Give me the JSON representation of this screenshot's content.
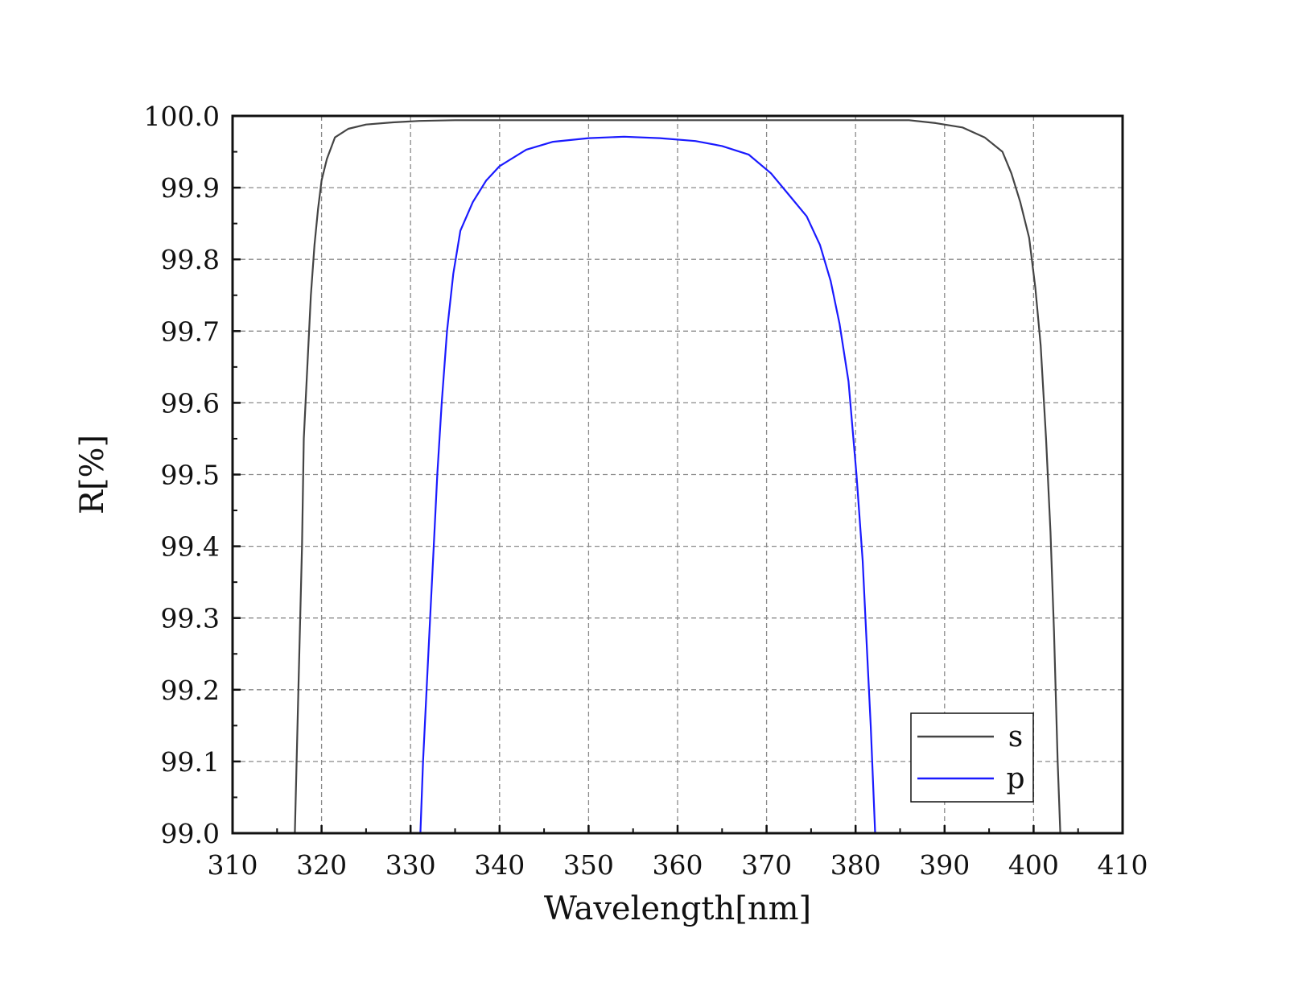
{
  "chart_data": {
    "type": "line",
    "title": "",
    "xlabel": "Wavelength[nm]",
    "ylabel": "R[%]",
    "xlim": [
      310,
      410
    ],
    "ylim": [
      99.0,
      100.0
    ],
    "x_ticks": [
      "310",
      "320",
      "330",
      "340",
      "350",
      "360",
      "370",
      "380",
      "390",
      "400",
      "410"
    ],
    "y_ticks": [
      "99.0",
      "99.1",
      "99.2",
      "99.3",
      "99.4",
      "99.5",
      "99.6",
      "99.7",
      "99.8",
      "99.9",
      "100.0"
    ],
    "grid": true,
    "legend_position": "bottom-right",
    "series": [
      {
        "name": "s",
        "color": "#444444",
        "points": [
          [
            317.0,
            99.0
          ],
          [
            317.4,
            99.2
          ],
          [
            317.8,
            99.4
          ],
          [
            318.0,
            99.55
          ],
          [
            318.4,
            99.65
          ],
          [
            318.8,
            99.75
          ],
          [
            319.2,
            99.82
          ],
          [
            319.6,
            99.87
          ],
          [
            320.0,
            99.91
          ],
          [
            320.6,
            99.94
          ],
          [
            321.5,
            99.97
          ],
          [
            323.0,
            99.982
          ],
          [
            325.0,
            99.988
          ],
          [
            328.0,
            99.991
          ],
          [
            331.0,
            99.993
          ],
          [
            335.0,
            99.994
          ],
          [
            345.0,
            99.994
          ],
          [
            355.0,
            99.994
          ],
          [
            365.0,
            99.994
          ],
          [
            375.0,
            99.994
          ],
          [
            386.0,
            99.994
          ],
          [
            389.0,
            99.99
          ],
          [
            392.0,
            99.984
          ],
          [
            394.5,
            99.97
          ],
          [
            396.5,
            99.95
          ],
          [
            397.5,
            99.92
          ],
          [
            398.5,
            99.88
          ],
          [
            399.5,
            99.83
          ],
          [
            400.2,
            99.76
          ],
          [
            400.8,
            99.68
          ],
          [
            401.4,
            99.55
          ],
          [
            401.9,
            99.42
          ],
          [
            402.3,
            99.28
          ],
          [
            402.7,
            99.1
          ],
          [
            403.0,
            99.0
          ]
        ]
      },
      {
        "name": "p",
        "color": "#1a1aff",
        "points": [
          [
            331.1,
            99.0
          ],
          [
            331.4,
            99.1
          ],
          [
            331.8,
            99.2
          ],
          [
            332.2,
            99.3
          ],
          [
            332.6,
            99.4
          ],
          [
            333.0,
            99.5
          ],
          [
            333.5,
            99.6
          ],
          [
            334.1,
            99.7
          ],
          [
            334.8,
            99.78
          ],
          [
            335.6,
            99.84
          ],
          [
            337.0,
            99.88
          ],
          [
            338.5,
            99.91
          ],
          [
            340.0,
            99.93
          ],
          [
            343.0,
            99.953
          ],
          [
            346.0,
            99.964
          ],
          [
            350.0,
            99.969
          ],
          [
            354.0,
            99.971
          ],
          [
            358.0,
            99.969
          ],
          [
            362.0,
            99.965
          ],
          [
            365.0,
            99.958
          ],
          [
            368.0,
            99.946
          ],
          [
            370.5,
            99.92
          ],
          [
            372.5,
            99.89
          ],
          [
            374.5,
            99.86
          ],
          [
            376.0,
            99.82
          ],
          [
            377.2,
            99.77
          ],
          [
            378.2,
            99.71
          ],
          [
            379.2,
            99.63
          ],
          [
            380.1,
            99.5
          ],
          [
            380.8,
            99.38
          ],
          [
            381.3,
            99.25
          ],
          [
            381.7,
            99.15
          ],
          [
            382.2,
            99.0
          ]
        ]
      }
    ]
  }
}
